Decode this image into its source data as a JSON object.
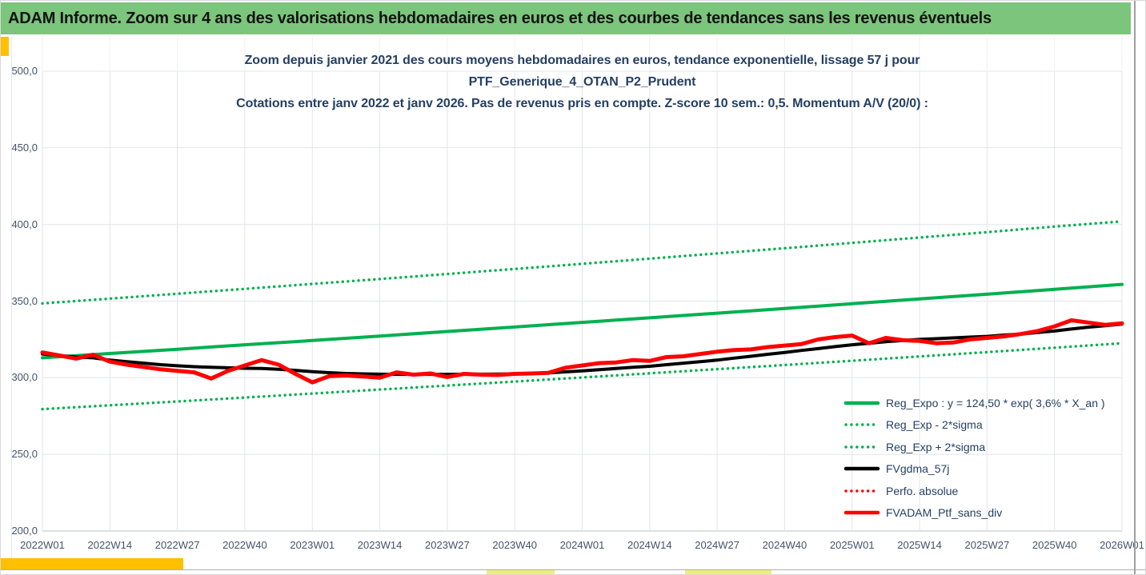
{
  "header": {
    "text": "ADAM Informe. Zoom sur 4 ans des valorisations hebdomadaires en euros et des courbes de tendances sans les revenus éventuels"
  },
  "chart": {
    "title_lines": [
      "Zoom depuis janvier 2021 des cours moyens hebdomadaires  en euros, tendance exponentielle, lissage 57 j pour",
      "PTF_Generique_4_OTAN_P2_Prudent",
      "Cotations  entre janv 2022 et janv 2026. Pas de revenus pris en compte. Z-score 10 sem.: 0,5. Momentum A/V (20/0) :"
    ]
  },
  "legend": {
    "items": [
      {
        "label": "Reg_Expo : y = 124,50 * exp( 3,6% *  X_an )",
        "color": "#00B050",
        "style": "solid"
      },
      {
        "label": "Reg_Exp - 2*sigma",
        "color": "#00B050",
        "style": "dotted"
      },
      {
        "label": "Reg_Exp + 2*sigma",
        "color": "#00B050",
        "style": "dotted"
      },
      {
        "label": "FVgdma_57j",
        "color": "#000000",
        "style": "solid"
      },
      {
        "label": "Perfo. absolue",
        "color": "#FF0000",
        "style": "dotted"
      },
      {
        "label": "FVADAM_Ptf_sans_div",
        "color": "#FF0000",
        "style": "solid"
      }
    ]
  },
  "colors": {
    "header_bg": "#7CC57C",
    "accent_gold": "#FFC000",
    "highlight_yellow": "#F0EC7E",
    "grid": "#E2E6EA",
    "axis_line": "#B9BFC6",
    "text_navy": "#243F63",
    "text_axis": "#44546A"
  },
  "chart_data": {
    "type": "line",
    "title": "Zoom depuis janvier 2021 des cours moyens hebdomadaires en euros, tendance exponentielle, lissage 57 j pour PTF_Generique_4_OTAN_P2_Prudent",
    "x_axis": {
      "ticks": [
        "2022W01",
        "2022W14",
        "2022W27",
        "2022W40",
        "2023W01",
        "2023W14",
        "2023W27",
        "2023W40",
        "2024W01",
        "2024W14",
        "2024W27",
        "2024W40",
        "2025W01",
        "2025W14",
        "2025W27",
        "2025W40",
        "2026W01"
      ]
    },
    "y_axis": {
      "min": 200,
      "max": 500,
      "step": 50,
      "tick_labels": [
        "200,0",
        "250,0",
        "300,0",
        "350,0",
        "400,0",
        "450,0",
        "500,0"
      ]
    },
    "grid": true,
    "legend_position": "inside-bottom-right",
    "draw_order": [
      "Reg_Exp - 2*sigma",
      "Reg_Exp + 2*sigma",
      "Reg_Expo",
      "FVgdma_57j",
      "Perfo. absolue",
      "FVADAM_Ptf_sans_div"
    ],
    "series": [
      {
        "name": "Reg_Expo",
        "formula": "y = 124,50 * exp( 3,6% * X_an )",
        "color": "#00B050",
        "style": "solid",
        "width": 4,
        "values": [
          313.0,
          315.8,
          318.6,
          321.5,
          324.3,
          327.2,
          330.2,
          333.1,
          336.1,
          339.1,
          342.1,
          345.2,
          348.3,
          351.4,
          354.5,
          357.7,
          360.9
        ]
      },
      {
        "name": "Reg_Exp - 2*sigma",
        "color": "#00B050",
        "style": "dotted",
        "width": 3.4,
        "values": [
          279.5,
          282.0,
          284.5,
          287.1,
          289.7,
          292.3,
          294.9,
          297.5,
          300.2,
          302.9,
          305.6,
          308.3,
          311.1,
          313.9,
          316.7,
          319.6,
          322.5
        ]
      },
      {
        "name": "Reg_Exp + 2*sigma",
        "color": "#00B050",
        "style": "dotted",
        "width": 3.4,
        "values": [
          348.5,
          351.6,
          354.8,
          358.0,
          361.2,
          364.4,
          367.7,
          371.0,
          374.3,
          377.7,
          381.1,
          384.5,
          388.0,
          391.5,
          395.0,
          398.6,
          402.0
        ]
      },
      {
        "name": "FVgdma_57j",
        "color": "#000000",
        "style": "solid",
        "width": 4,
        "values": [
          315.5,
          314.5,
          313.5,
          313.0,
          311.5,
          310.5,
          309.5,
          308.5,
          307.8,
          307.2,
          306.8,
          306.5,
          306.2,
          306.0,
          305.5,
          304.8,
          304.0,
          303.3,
          302.8,
          302.5,
          302.3,
          302.2,
          302.2,
          302.2,
          302.2,
          302.3,
          302.3,
          302.4,
          302.5,
          302.8,
          303.2,
          303.8,
          304.5,
          305.3,
          306.0,
          306.8,
          307.5,
          308.5,
          309.5,
          310.5,
          311.5,
          312.8,
          314.0,
          315.3,
          316.5,
          317.8,
          319.0,
          320.3,
          321.5,
          322.5,
          323.5,
          324.3,
          325.0,
          325.5,
          326.0,
          326.5,
          327.0,
          327.8,
          328.5,
          329.5,
          330.5,
          331.8,
          333.0,
          334.0,
          335.0
        ]
      },
      {
        "name": "Perfo. absolue",
        "color": "#FF0000",
        "style": "dotted",
        "width": 3.4,
        "values_from": "FVADAM_Ptf_sans_div"
      },
      {
        "name": "FVADAM_Ptf_sans_div",
        "color": "#FF0000",
        "style": "solid",
        "width": 5,
        "values": [
          316.5,
          314.5,
          312.5,
          315.0,
          310.5,
          308.5,
          307.0,
          305.5,
          304.5,
          303.5,
          299.5,
          304.5,
          308.0,
          311.5,
          308.5,
          302.5,
          297.0,
          301.0,
          301.5,
          300.8,
          300.0,
          303.5,
          302.0,
          302.8,
          300.5,
          302.5,
          302.0,
          301.8,
          302.5,
          302.8,
          303.2,
          306.5,
          308.0,
          309.5,
          310.0,
          311.5,
          311.0,
          313.5,
          314.0,
          315.5,
          317.0,
          318.0,
          318.5,
          320.0,
          321.0,
          322.0,
          325.0,
          326.5,
          327.5,
          322.5,
          326.0,
          324.5,
          324.0,
          322.5,
          323.0,
          325.0,
          326.0,
          327.0,
          328.5,
          330.5,
          333.5,
          337.5,
          336.0,
          334.5,
          335.5
        ]
      }
    ]
  }
}
